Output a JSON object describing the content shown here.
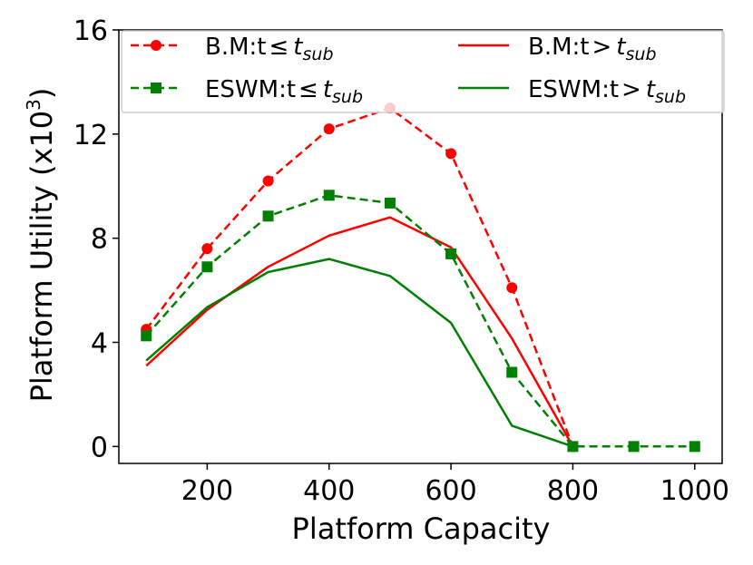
{
  "chart_data": {
    "type": "line",
    "xlabel": "Platform Capacity",
    "ylabel_main": "Platform Utility (x10",
    "ylabel_exp": "3",
    "ylabel_close": ")",
    "xlim": [
      55,
      1045
    ],
    "ylim": [
      -0.65,
      16
    ],
    "x_ticks": [
      200,
      400,
      600,
      800,
      1000
    ],
    "y_ticks": [
      0,
      4,
      8,
      12,
      16
    ],
    "x_tick_labels": [
      "200",
      "400",
      "600",
      "800",
      "1000"
    ],
    "y_tick_labels": [
      "0",
      "4",
      "8",
      "12",
      "16"
    ],
    "legend_placement": "top",
    "legend_base": {
      "bm": "B.M:t",
      "eswm": "ESWM:t"
    },
    "legend_le": "≤",
    "legend_gt": ">",
    "legend_t": "t",
    "legend_sub": "sub",
    "series": [
      {
        "key": "bm_le",
        "color": "#ff0000",
        "dash": true,
        "marker": "circle",
        "x": [
          100,
          200,
          300,
          400,
          500,
          600,
          700,
          800
        ],
        "y": [
          4.5,
          7.6,
          10.2,
          12.2,
          13.0,
          11.25,
          6.1,
          0.0
        ]
      },
      {
        "key": "bm_gt",
        "color": "#ff0000",
        "dash": false,
        "marker": "none",
        "x": [
          100,
          200,
          300,
          400,
          500,
          600,
          700,
          800
        ],
        "y": [
          3.1,
          5.25,
          6.9,
          8.1,
          8.8,
          7.65,
          4.15,
          0.0
        ]
      },
      {
        "key": "eswm_le",
        "color": "#008000",
        "dash": true,
        "marker": "square",
        "x": [
          100,
          200,
          300,
          400,
          500,
          600,
          700,
          800,
          900,
          1000
        ],
        "y": [
          4.25,
          6.9,
          8.85,
          9.65,
          9.35,
          7.4,
          2.85,
          0.0,
          0.0,
          0.0
        ]
      },
      {
        "key": "eswm_gt",
        "color": "#008000",
        "dash": false,
        "marker": "none",
        "x": [
          100,
          200,
          300,
          400,
          500,
          600,
          700,
          800
        ],
        "y": [
          3.3,
          5.35,
          6.7,
          7.2,
          6.55,
          4.75,
          0.8,
          0.0
        ]
      }
    ]
  }
}
